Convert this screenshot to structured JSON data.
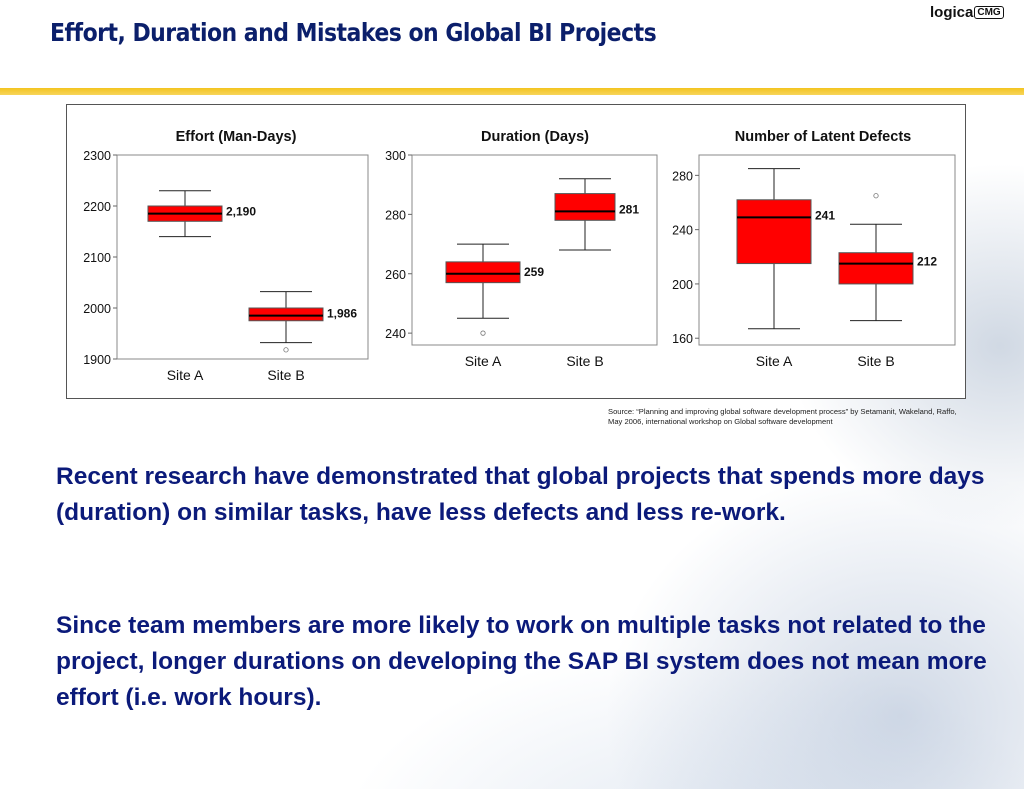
{
  "slide": {
    "title": "Effort, Duration and Mistakes on Global BI Projects",
    "logo": {
      "main": "logica",
      "suffix": "CMG"
    },
    "source": "Source: “Planning and improving global software development process” by Setamanit, Wakeland, Raffo, May 2006,  international workshop on Global software development",
    "paragraphs": [
      "Recent research have demonstrated that global projects that spends more days (duration) on similar tasks, have less defects and less re-work.",
      "Since team members are more likely to work on multiple tasks not related to the project, longer durations on developing the SAP BI system does not mean more effort (i.e. work hours)."
    ],
    "colors": {
      "title": "#0b1f6b",
      "body_text": "#0b1a7a",
      "rule": "#f3c420",
      "box_fill": "#ff0000"
    }
  },
  "chart_data": [
    {
      "type": "box",
      "title": "Effort (Man-Days)",
      "categories": [
        "Site A",
        "Site B"
      ],
      "ylim": [
        1900,
        2300
      ],
      "yticks": [
        1900,
        2000,
        2100,
        2200,
        2300
      ],
      "ytick_labels": [
        "1900",
        "2000",
        "2100",
        "2200",
        "2300"
      ],
      "boxes": [
        {
          "whisker_low": 2140,
          "q1": 2170,
          "median": 2185,
          "q3": 2200,
          "whisker_high": 2230,
          "outliers": [],
          "label": "2,190"
        },
        {
          "whisker_low": 1932,
          "q1": 1975,
          "median": 1985,
          "q3": 2000,
          "whisker_high": 2032,
          "outliers": [
            1918
          ],
          "label": "1,986"
        }
      ]
    },
    {
      "type": "box",
      "title": "Duration (Days)",
      "categories": [
        "Site A",
        "Site B"
      ],
      "ylim": [
        236,
        300
      ],
      "yticks": [
        240,
        260,
        280,
        300
      ],
      "ytick_labels": [
        "240",
        "260",
        "280",
        "300"
      ],
      "boxes": [
        {
          "whisker_low": 245,
          "q1": 257,
          "median": 260,
          "q3": 264,
          "whisker_high": 270,
          "outliers": [
            240
          ],
          "label": "259"
        },
        {
          "whisker_low": 268,
          "q1": 278,
          "median": 281,
          "q3": 287,
          "whisker_high": 292,
          "outliers": [],
          "label": "281"
        }
      ]
    },
    {
      "type": "box",
      "title": "Number of Latent Defects",
      "categories": [
        "Site A",
        "Site B"
      ],
      "ylim": [
        155,
        295
      ],
      "yticks": [
        160,
        200,
        240,
        280
      ],
      "ytick_labels": [
        "160",
        "200",
        "240",
        "280"
      ],
      "boxes": [
        {
          "whisker_low": 167,
          "q1": 215,
          "median": 249,
          "q3": 262,
          "whisker_high": 285,
          "outliers": [],
          "label": "241"
        },
        {
          "whisker_low": 173,
          "q1": 200,
          "median": 215,
          "q3": 223,
          "whisker_high": 244,
          "outliers": [
            265
          ],
          "label": "212"
        }
      ]
    }
  ]
}
